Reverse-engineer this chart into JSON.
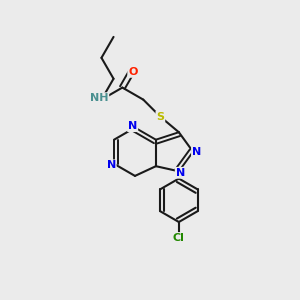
{
  "background_color": "#ebebeb",
  "bond_color": "#1a1a1a",
  "atom_colors": {
    "N": "#0000ee",
    "O": "#ff2200",
    "S": "#bbbb00",
    "Cl": "#228800",
    "C": "#1a1a1a",
    "H": "#4a9090"
  },
  "figsize": [
    3.0,
    3.0
  ],
  "dpi": 100
}
